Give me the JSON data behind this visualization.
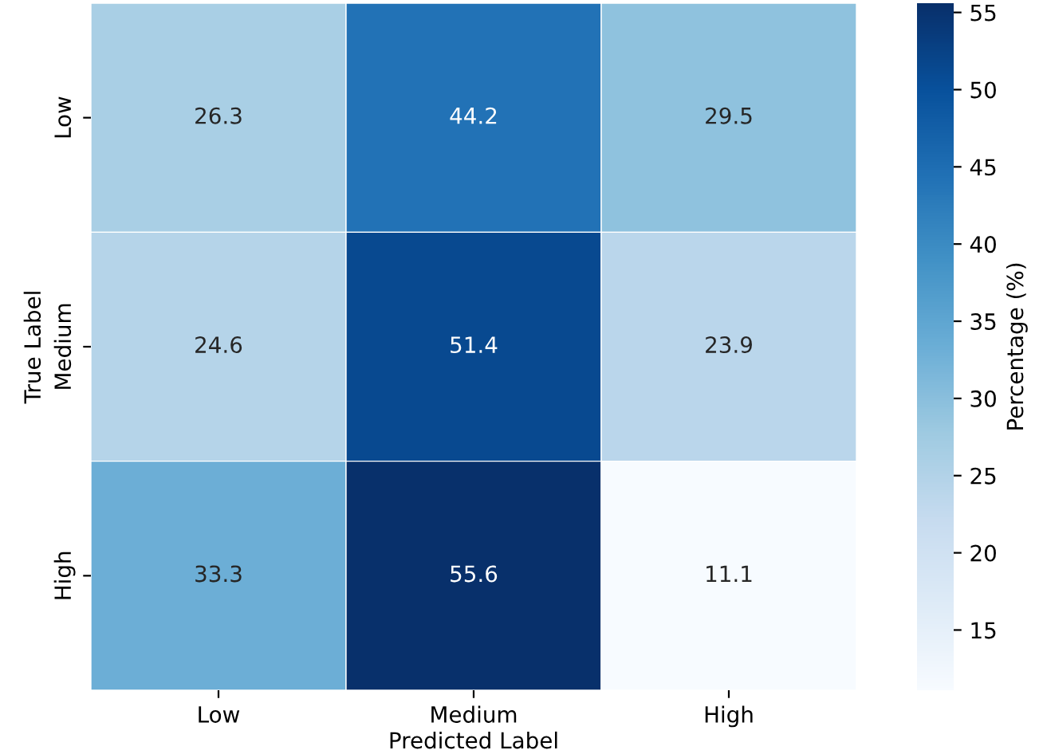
{
  "chart_data": {
    "type": "heatmap",
    "xlabel": "Predicted Label",
    "ylabel": "True Label",
    "clabel": "Percentage (%)",
    "categories": [
      "Low",
      "Medium",
      "High"
    ],
    "y_categories": [
      "Low",
      "Medium",
      "High"
    ],
    "cells": [
      [
        26.3,
        44.2,
        29.5
      ],
      [
        24.6,
        51.4,
        23.9
      ],
      [
        33.3,
        55.6,
        11.1
      ]
    ],
    "data_labels": true,
    "clim": [
      11.1,
      55.6
    ],
    "cticks": [
      15,
      20,
      25,
      30,
      35,
      40,
      45,
      50,
      55
    ]
  }
}
